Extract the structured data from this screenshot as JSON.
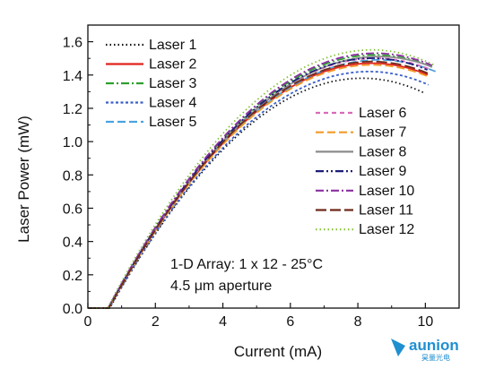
{
  "chart_data": {
    "type": "line",
    "title": "",
    "xlabel": "Current (mA)",
    "ylabel": "Laser Power (mW)",
    "xlim": [
      0,
      11
    ],
    "ylim": [
      0,
      1.7
    ],
    "xticks": [
      "0",
      "2",
      "4",
      "6",
      "8",
      "10"
    ],
    "yticks": [
      "0.0",
      "0.2",
      "0.4",
      "0.6",
      "0.8",
      "1.0",
      "1.2",
      "1.4",
      "1.6"
    ],
    "xtick_values": [
      0,
      2,
      4,
      6,
      8,
      10
    ],
    "ytick_values": [
      0,
      0.2,
      0.4,
      0.6,
      0.8,
      1.0,
      1.2,
      1.4,
      1.6
    ],
    "annotation_line1": "1-D Array: 1 x 12  - 25°C",
    "annotation_line2": "4.5 μm aperture",
    "legend_left": [
      {
        "name": "Laser   1",
        "color": "#111111",
        "dash": "dot"
      },
      {
        "name": "Laser   2",
        "color": "#e0241c",
        "dash": "solid"
      },
      {
        "name": "Laser   3",
        "color": "#2e9e2e",
        "dash": "dashdot"
      },
      {
        "name": "Laser   4",
        "color": "#3a5fc8",
        "dash": "shortdot"
      },
      {
        "name": "Laser   5",
        "color": "#4aa3e0",
        "dash": "dash"
      }
    ],
    "legend_right": [
      {
        "name": "Laser   6",
        "color": "#d86ab8",
        "dash": "shortdash"
      },
      {
        "name": "Laser   7",
        "color": "#f29a2a",
        "dash": "dash"
      },
      {
        "name": "Laser   8",
        "color": "#8c8c8c",
        "dash": "solid"
      },
      {
        "name": "Laser   9",
        "color": "#1d1d7a",
        "dash": "dashdotdot"
      },
      {
        "name": "Laser 10",
        "color": "#8a2ea0",
        "dash": "dashdot"
      },
      {
        "name": "Laser 11",
        "color": "#6e2a1a",
        "dash": "longdash"
      },
      {
        "name": "Laser 12",
        "color": "#86c23a",
        "dash": "dot"
      }
    ],
    "series": [
      {
        "name": "Laser   1",
        "threshold": 0.65,
        "peak_x": 8.3,
        "peak_y": 1.38,
        "end_x": 10.0
      },
      {
        "name": "Laser   2",
        "threshold": 0.62,
        "peak_x": 8.6,
        "peak_y": 1.47,
        "end_x": 10.1
      },
      {
        "name": "Laser   3",
        "threshold": 0.6,
        "peak_x": 8.7,
        "peak_y": 1.52,
        "end_x": 10.2
      },
      {
        "name": "Laser   4",
        "threshold": 0.64,
        "peak_x": 8.5,
        "peak_y": 1.42,
        "end_x": 10.1
      },
      {
        "name": "Laser   5",
        "threshold": 0.6,
        "peak_x": 8.8,
        "peak_y": 1.49,
        "end_x": 10.3
      },
      {
        "name": "Laser   6",
        "threshold": 0.6,
        "peak_x": 8.7,
        "peak_y": 1.5,
        "end_x": 10.2
      },
      {
        "name": "Laser   7",
        "threshold": 0.62,
        "peak_x": 8.6,
        "peak_y": 1.46,
        "end_x": 10.1
      },
      {
        "name": "Laser   8",
        "threshold": 0.6,
        "peak_x": 8.8,
        "peak_y": 1.51,
        "end_x": 10.2
      },
      {
        "name": "Laser   9",
        "threshold": 0.61,
        "peak_x": 8.6,
        "peak_y": 1.5,
        "end_x": 10.1
      },
      {
        "name": "Laser 10",
        "threshold": 0.6,
        "peak_x": 8.7,
        "peak_y": 1.53,
        "end_x": 10.2
      },
      {
        "name": "Laser 11",
        "threshold": 0.62,
        "peak_x": 8.6,
        "peak_y": 1.48,
        "end_x": 10.1
      },
      {
        "name": "Laser 12",
        "threshold": 0.58,
        "peak_x": 8.6,
        "peak_y": 1.55,
        "end_x": 10.3
      }
    ]
  },
  "watermark": {
    "brand": "aunion",
    "sub": "昊量光电"
  }
}
